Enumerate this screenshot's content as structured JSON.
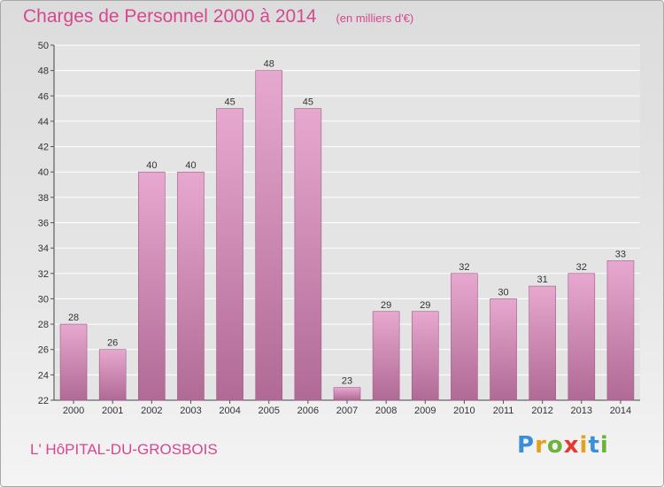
{
  "header": {
    "title": "Charges de Personnel 2000 à 2014",
    "subtitle": "(en milliers d'€)"
  },
  "footer": {
    "commune": "L' HôPITAL-DU-GROSBOIS",
    "logo_text": "Proxiti"
  },
  "colors": {
    "bar_top": "#e7a8cf",
    "bar_bottom": "#b06a95",
    "bar_edge": "#9c5c84",
    "title": "#d6478f"
  },
  "chart_data": {
    "type": "bar",
    "categories": [
      "2000",
      "2001",
      "2002",
      "2003",
      "2004",
      "2005",
      "2006",
      "2007",
      "2008",
      "2009",
      "2010",
      "2011",
      "2012",
      "2013",
      "2014"
    ],
    "values": [
      28,
      26,
      40,
      40,
      45,
      48,
      45,
      23,
      29,
      29,
      32,
      30,
      31,
      32,
      33
    ],
    "title": "Charges de Personnel 2000 à 2014",
    "ylim": [
      22,
      50
    ],
    "yticks": [
      22,
      24,
      26,
      28,
      30,
      32,
      34,
      36,
      38,
      40,
      42,
      44,
      46,
      48,
      50
    ],
    "grid": true,
    "data_labels": true
  }
}
